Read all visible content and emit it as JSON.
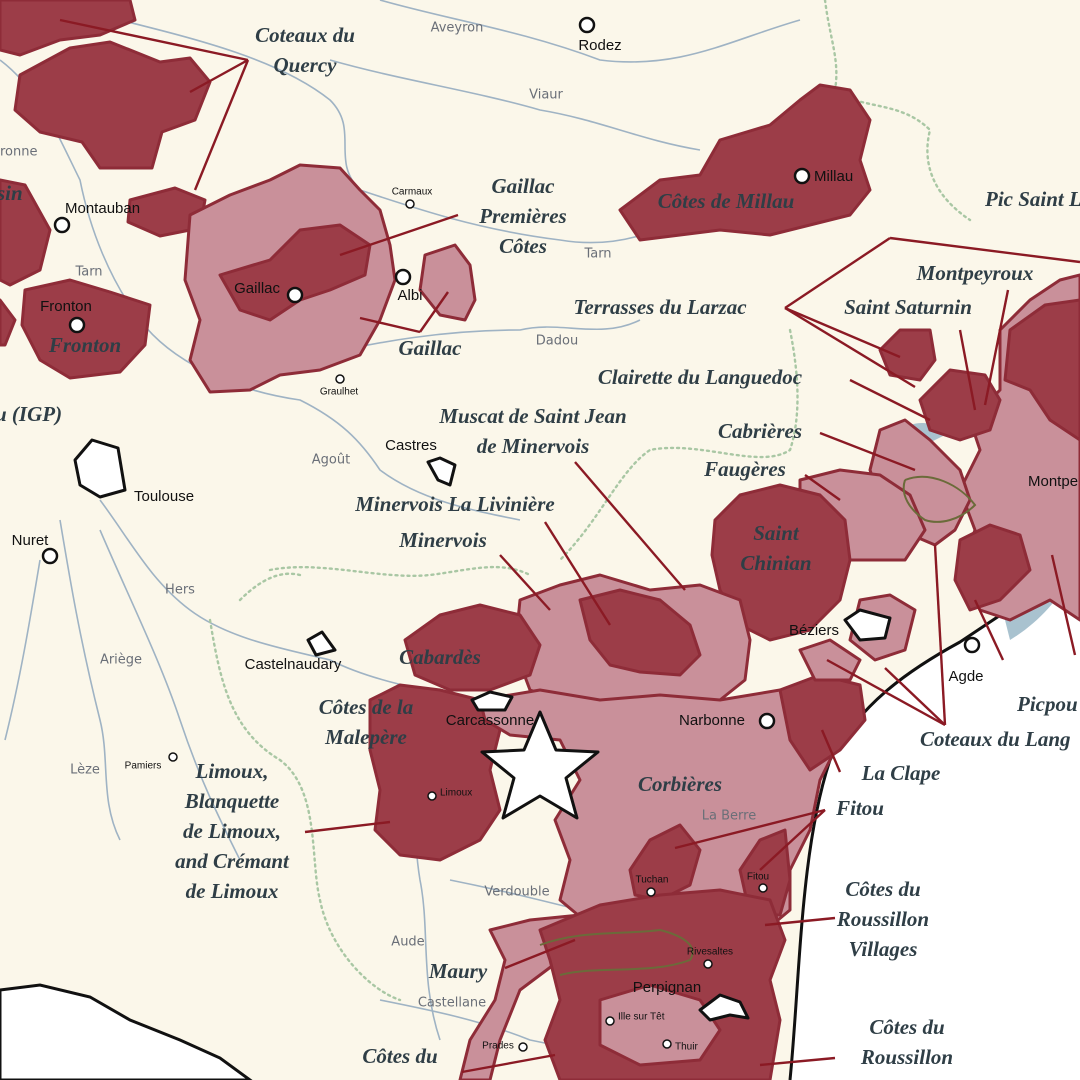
{
  "appellations": [
    [
      "Coteaux du",
      "Quercy"
    ],
    [
      "Gaillac",
      "Premières",
      "Côtes"
    ],
    [
      "Gaillac"
    ],
    [
      "Fronton"
    ],
    [
      "Côtes de Millau"
    ],
    [
      "Pic Saint L"
    ],
    [
      "Montpeyroux"
    ],
    [
      "Saint Saturnin"
    ],
    [
      "Terrasses du Larzac"
    ],
    [
      "Clairette du Languedoc"
    ],
    [
      "Cabrières"
    ],
    [
      "Faugères"
    ],
    [
      "Saint",
      "Chinian"
    ],
    [
      "Muscat de Saint Jean",
      "de Minervois"
    ],
    [
      "Minervois La Livinière"
    ],
    [
      "Minervois"
    ],
    [
      "Cabardès"
    ],
    [
      "Côtes de la",
      "Malepère"
    ],
    [
      "Limoux,",
      "Blanquette",
      "de Limoux,",
      "and Crémant",
      "de Limoux"
    ],
    [
      "Corbières"
    ],
    [
      "La Clape"
    ],
    [
      "Fitou"
    ],
    [
      "Picpou"
    ],
    [
      "Coteaux du Lang"
    ],
    [
      "Côtes du",
      "Roussillon",
      "Villages"
    ],
    [
      "Maury"
    ],
    [
      "Côtes du",
      "Roussillon"
    ],
    [
      "Côtes du"
    ],
    [
      "u (IGP)"
    ],
    [
      "sin"
    ]
  ],
  "towns": [
    "Rodez",
    "Millau",
    "Carmaux",
    "Albi",
    "Gaillac",
    "Montauban",
    "Fronton",
    "Graulhet",
    "Castres",
    "Toulouse",
    "Nuret",
    "Castelnaudary",
    "Carcassonne",
    "Limoux",
    "Pamiers",
    "Béziers",
    "Agde",
    "Montpe",
    "Narbonne",
    "Tuchan",
    "Fitou",
    "Rivesaltes",
    "Perpignan",
    "Ille sur Têt",
    "Prades",
    "Thuir"
  ],
  "rivers": [
    "Aveyron",
    "Viaur",
    "ronne",
    "Tarn",
    "Tarn",
    "Dadou",
    "Agoût",
    "Hers",
    "Ariège",
    "Lèze",
    "Verdouble",
    "Aude",
    "Castellane",
    "La Berre"
  ]
}
